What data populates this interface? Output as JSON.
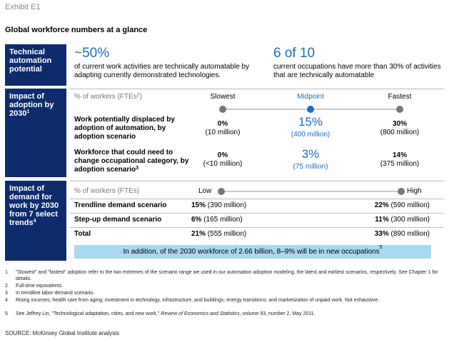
{
  "exhibit": "Exhibit E1",
  "title": "Global workforce numbers at a glance",
  "section1": {
    "label": "Technical automation potential",
    "stat1_big": "~50%",
    "stat1_text": "of current work activities are technically automatable by adapting currently demonstrated technologies.",
    "stat2_big": "6 of 10",
    "stat2_text": "current occupations have more than 30% of activities that are technically automatable"
  },
  "section2": {
    "label": "Impact of adoption by 2030",
    "label_sup": "1",
    "metric": "% of workers (FTEs",
    "metric_sup": "2",
    "metric_close": ")",
    "col_slowest": "Slowest",
    "col_midpoint": "Midpoint",
    "col_fastest": "Fastest",
    "row1_label": "Work potentially displaced by adoption of automation, by adoption scenario",
    "row1_slow_pct": "0%",
    "row1_slow_abs": "(10 million)",
    "row1_mid_pct": "15%",
    "row1_mid_abs": "(400 million)",
    "row1_fast_pct": "30%",
    "row1_fast_abs": "(800 million)",
    "row2_label": "Workforce that could need to change occupational category, by adoption scenario",
    "row2_sup": "3",
    "row2_slow_pct": "0%",
    "row2_slow_abs": "(<10 million)",
    "row2_mid_pct": "3%",
    "row2_mid_abs": "(75 million)",
    "row2_fast_pct": "14%",
    "row2_fast_abs": "(375 million)"
  },
  "section3": {
    "label": "Impact of demand for work by 2030 from 7 select trends",
    "label_sup": "4",
    "metric": "% of workers (FTEs)",
    "low": "Low",
    "high": "High",
    "rows": [
      {
        "label": "Trendline demand scenario",
        "low_pct": "15%",
        "low_abs": "(390 million)",
        "high_pct": "22%",
        "high_abs": "(590 million)"
      },
      {
        "label": "Step-up demand scenario",
        "low_pct": "6%",
        "low_abs": "(165 million)",
        "high_pct": "11%",
        "high_abs": "(300 million)"
      },
      {
        "label": "Total",
        "low_pct": "21%",
        "low_abs": "(555 million)",
        "high_pct": "33%",
        "high_abs": "(890 million)"
      }
    ],
    "banner": "In addition, of the 2030 workforce of 2.66 billion, 8–9% will be in new occupations",
    "banner_sup": "5"
  },
  "footnotes": [
    {
      "n": "1",
      "text": "\"Slowest\" and \"fastest\" adoption refer to the two extremes of the scenario range we used in our automation adoption modeling, the latest and earliest scenarios, respectively. See Chapter 1 for details."
    },
    {
      "n": "2",
      "text": "Full-time equivalents."
    },
    {
      "n": "3",
      "text": "In trendline labor-demand scenario."
    },
    {
      "n": "4",
      "text": "Rising incomes; health care from aging; investment in technology, infrastructure, and buildings; energy transitions; and marketization of unpaid work. Not exhaustive."
    }
  ],
  "footnote5": {
    "n": "5",
    "pre": "See Jeffrey Lin, \"Technological adaptation, cities, and new work,\" ",
    "journal": "Review of Economics and Statistics",
    "post": ", volume 93, number 2, May 2011."
  },
  "source": "SOURCE: McKinsey Global Institute analysis"
}
